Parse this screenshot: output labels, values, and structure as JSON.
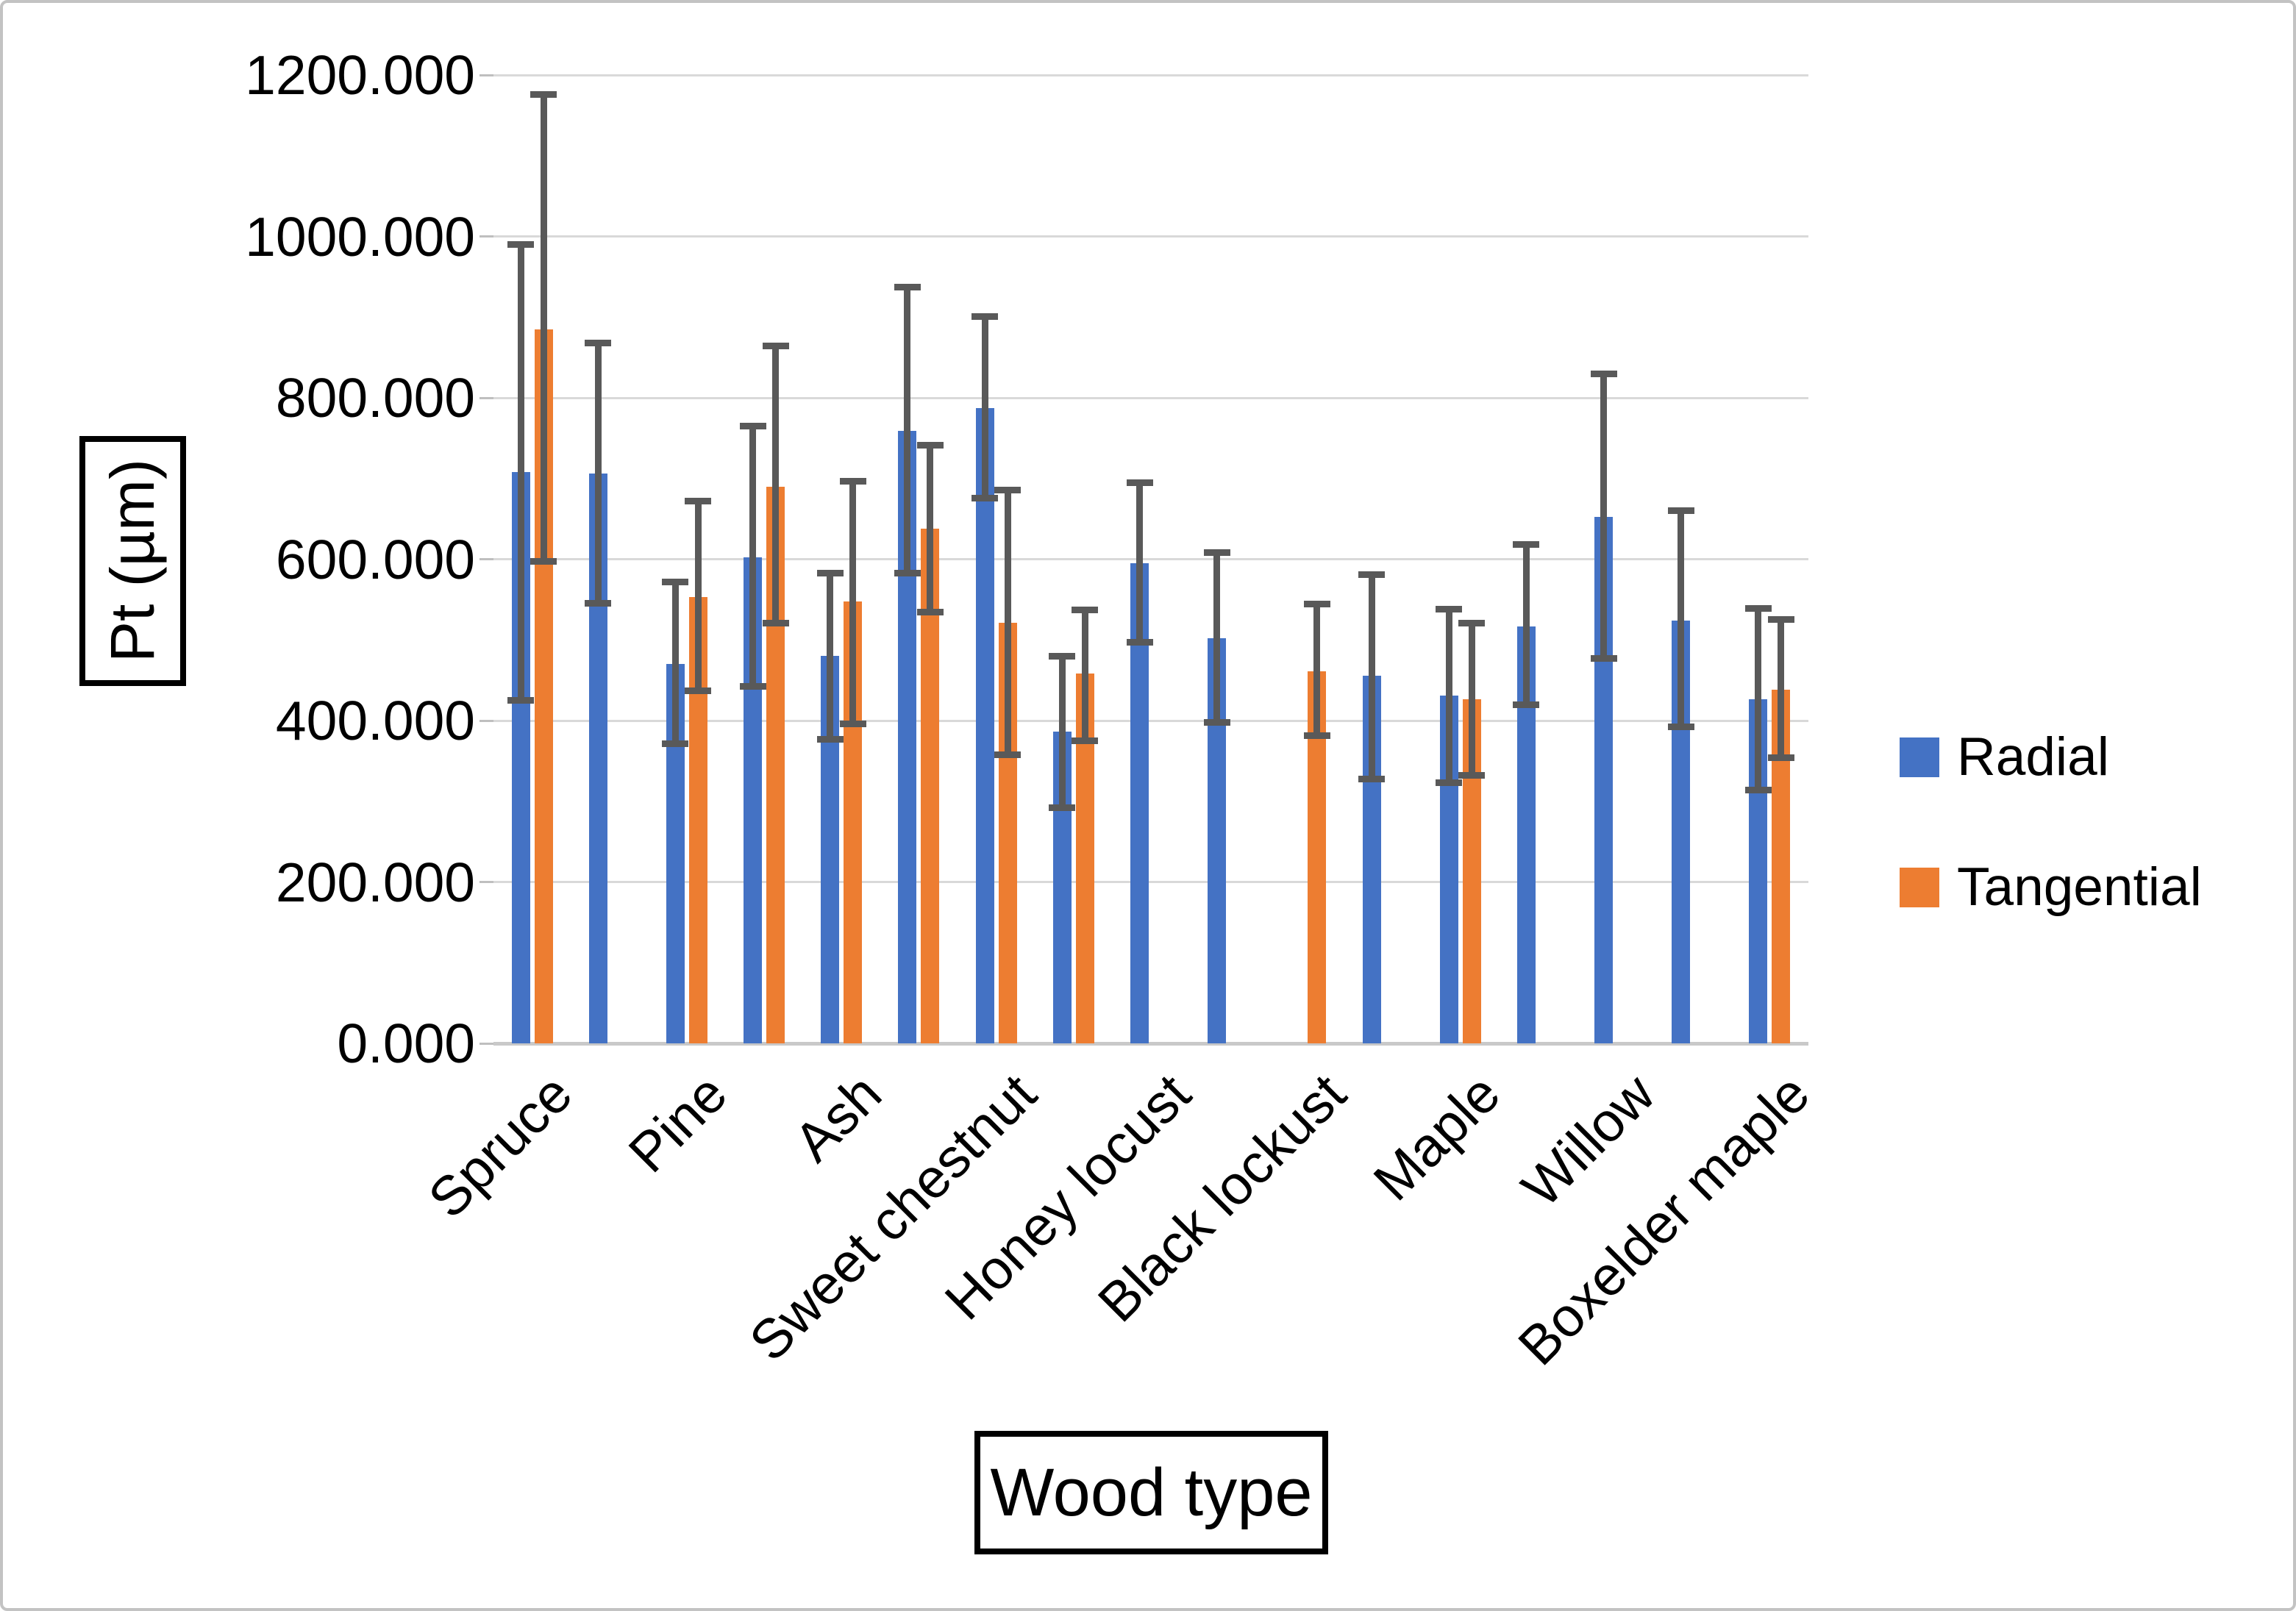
{
  "chart_data": {
    "type": "bar",
    "title": "",
    "xlabel": "Wood type",
    "ylabel": "Pt (µm)",
    "ylim": [
      0,
      1200
    ],
    "grid": "horizontal",
    "legend_position": "right",
    "gridline_color": "#d9d9d9",
    "error_bar_color": "#595959",
    "yticks": [
      {
        "value": 0,
        "label": "0.000"
      },
      {
        "value": 200,
        "label": "200.000"
      },
      {
        "value": 400,
        "label": "400.000"
      },
      {
        "value": 600,
        "label": "600.000"
      },
      {
        "value": 800,
        "label": "800.000"
      },
      {
        "value": 1000,
        "label": "1000.000"
      },
      {
        "value": 1200,
        "label": "1200.000"
      }
    ],
    "series": [
      {
        "name": "Radial",
        "color": "#4472c4"
      },
      {
        "name": "Tangential",
        "color": "#ed7d31"
      }
    ],
    "slots": [
      {
        "label": "Spruce",
        "radial": {
          "v": 708,
          "lo": 425,
          "hi": 990
        },
        "tangential": {
          "v": 885,
          "lo": 597,
          "hi": 1176
        }
      },
      {
        "label": null,
        "radial": {
          "v": 706,
          "lo": 545,
          "hi": 868
        },
        "tangential": null
      },
      {
        "label": "Pine",
        "radial": {
          "v": 470,
          "lo": 371,
          "hi": 572
        },
        "tangential": {
          "v": 553,
          "lo": 437,
          "hi": 672
        }
      },
      {
        "label": null,
        "radial": {
          "v": 602,
          "lo": 442,
          "hi": 765
        },
        "tangential": {
          "v": 690,
          "lo": 521,
          "hi": 864
        }
      },
      {
        "label": "Ash",
        "radial": {
          "v": 480,
          "lo": 377,
          "hi": 583
        },
        "tangential": {
          "v": 548,
          "lo": 396,
          "hi": 697
        }
      },
      {
        "label": null,
        "radial": {
          "v": 759,
          "lo": 583,
          "hi": 937
        },
        "tangential": {
          "v": 638,
          "lo": 534,
          "hi": 741
        }
      },
      {
        "label": "Sweet chestnut",
        "radial": {
          "v": 787,
          "lo": 676,
          "hi": 901
        },
        "tangential": {
          "v": 521,
          "lo": 358,
          "hi": 686
        }
      },
      {
        "label": null,
        "radial": {
          "v": 386,
          "lo": 292,
          "hi": 480
        },
        "tangential": {
          "v": 458,
          "lo": 375,
          "hi": 537
        }
      },
      {
        "label": "Honey locust",
        "radial": {
          "v": 595,
          "lo": 497,
          "hi": 695
        },
        "tangential": null
      },
      {
        "label": null,
        "radial": {
          "v": 502,
          "lo": 398,
          "hi": 608
        },
        "tangential": null
      },
      {
        "label": "Black lockust",
        "radial": null,
        "tangential": {
          "v": 461,
          "lo": 381,
          "hi": 544
        }
      },
      {
        "label": null,
        "radial": {
          "v": 456,
          "lo": 328,
          "hi": 581
        },
        "tangential": null
      },
      {
        "label": "Maple",
        "radial": {
          "v": 431,
          "lo": 323,
          "hi": 538
        },
        "tangential": {
          "v": 426,
          "lo": 332,
          "hi": 521
        }
      },
      {
        "label": null,
        "radial": {
          "v": 517,
          "lo": 420,
          "hi": 618
        },
        "tangential": null
      },
      {
        "label": "Willow",
        "radial": {
          "v": 652,
          "lo": 477,
          "hi": 830
        },
        "tangential": null
      },
      {
        "label": null,
        "radial": {
          "v": 524,
          "lo": 392,
          "hi": 660
        },
        "tangential": null
      },
      {
        "label": "Boxelder maple",
        "radial": {
          "v": 426,
          "lo": 314,
          "hi": 539
        },
        "tangential": {
          "v": 438,
          "lo": 354,
          "hi": 525
        }
      }
    ]
  }
}
